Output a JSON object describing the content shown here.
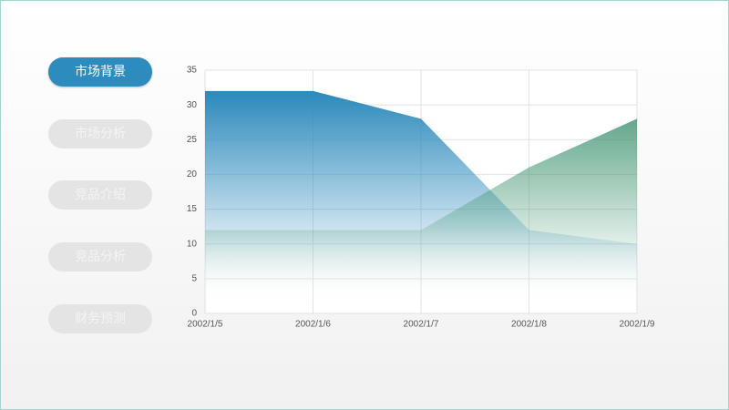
{
  "menu": [
    "市场背景",
    "市场分析",
    "竞品介绍",
    "竞品分析",
    "财务预测"
  ],
  "chart_data": {
    "type": "area",
    "categories": [
      "2002/1/5",
      "2002/1/6",
      "2002/1/7",
      "2002/1/8",
      "2002/1/9"
    ],
    "series": [
      {
        "color": "#2e8bbd",
        "values": [
          32,
          32,
          28,
          12,
          10
        ]
      },
      {
        "color": "#4a9a78",
        "values": [
          12,
          12,
          12,
          21,
          28
        ]
      }
    ],
    "ylim": [
      0,
      35
    ],
    "yticks": [
      0,
      5,
      10,
      15,
      20,
      25,
      30,
      35
    ],
    "grid": true
  }
}
